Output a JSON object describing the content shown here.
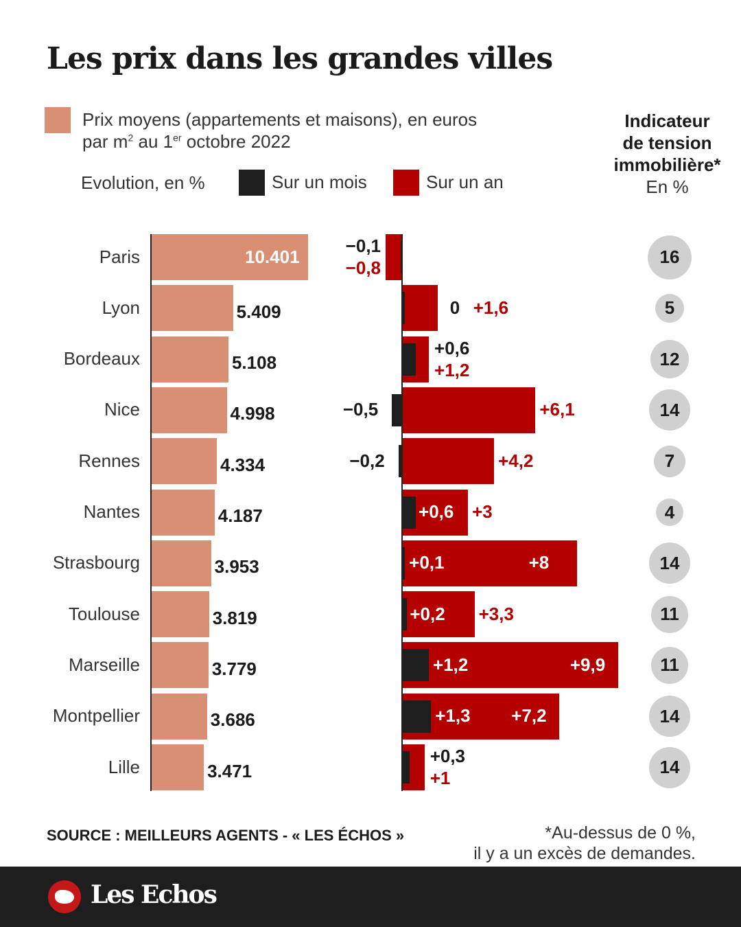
{
  "title": "Les prix dans les grandes villes",
  "legend": {
    "price_line1": "Prix moyens (appartements et maisons), en euros",
    "price_line2_a": "par m",
    "price_sup": "2",
    "price_line2_b": " au 1",
    "price_sup2": "er",
    "price_line2_c": " octobre 2022",
    "evolution": "Evolution, en %",
    "month": "Sur un mois",
    "year": "Sur un an"
  },
  "tension_header": {
    "l1": "Indicateur",
    "l2": "de tension",
    "l3": "immobilière*",
    "l4": "En %"
  },
  "source": "SOURCE : MEILLEURS AGENTS - « LES ÉCHOS »",
  "note1": "*Au-dessus de 0 %,",
  "note2": "il y a un excès de demandes.",
  "logo": "Les Echos",
  "colors": {
    "price": "#d88f74",
    "month": "#1e1e1e",
    "year": "#b50000",
    "circle": "#d0d0d0"
  },
  "chart_data": {
    "type": "bar",
    "title": "Les prix dans les grandes villes",
    "categories": [
      "Paris",
      "Lyon",
      "Bordeaux",
      "Nice",
      "Rennes",
      "Nantes",
      "Strasbourg",
      "Toulouse",
      "Marseille",
      "Montpellier",
      "Lille"
    ],
    "price_labels": [
      "10.401",
      "5.409",
      "5.108",
      "4.998",
      "4.334",
      "4.187",
      "3.953",
      "3.819",
      "3.779",
      "3.686",
      "3.471"
    ],
    "series": [
      {
        "name": "Prix moyens (€/m²)",
        "values": [
          10401,
          5409,
          5108,
          4998,
          4334,
          4187,
          3953,
          3819,
          3779,
          3686,
          3471
        ]
      },
      {
        "name": "Sur un mois",
        "values": [
          -0.1,
          0,
          0.6,
          -0.5,
          -0.2,
          0.6,
          0.1,
          0.2,
          1.2,
          1.3,
          0.3
        ],
        "labels": [
          "−0,1",
          "0",
          "+0,6",
          "−0,5",
          "−0,2",
          "+0,6",
          "+0,1",
          "+0,2",
          "+1,2",
          "+1,3",
          "+0,3"
        ]
      },
      {
        "name": "Sur un an",
        "values": [
          -0.8,
          1.6,
          1.2,
          6.1,
          4.2,
          3,
          8,
          3.3,
          9.9,
          7.2,
          1
        ],
        "labels": [
          "−0,8",
          "+1,6",
          "+1,2",
          "+6,1",
          "+4,2",
          "+3",
          "+8",
          "+3,3",
          "+9,9",
          "+7,2",
          "+1"
        ]
      },
      {
        "name": "Indicateur de tension immobilière (%)",
        "values": [
          16,
          5,
          12,
          14,
          7,
          4,
          14,
          11,
          11,
          14,
          14
        ]
      }
    ]
  }
}
